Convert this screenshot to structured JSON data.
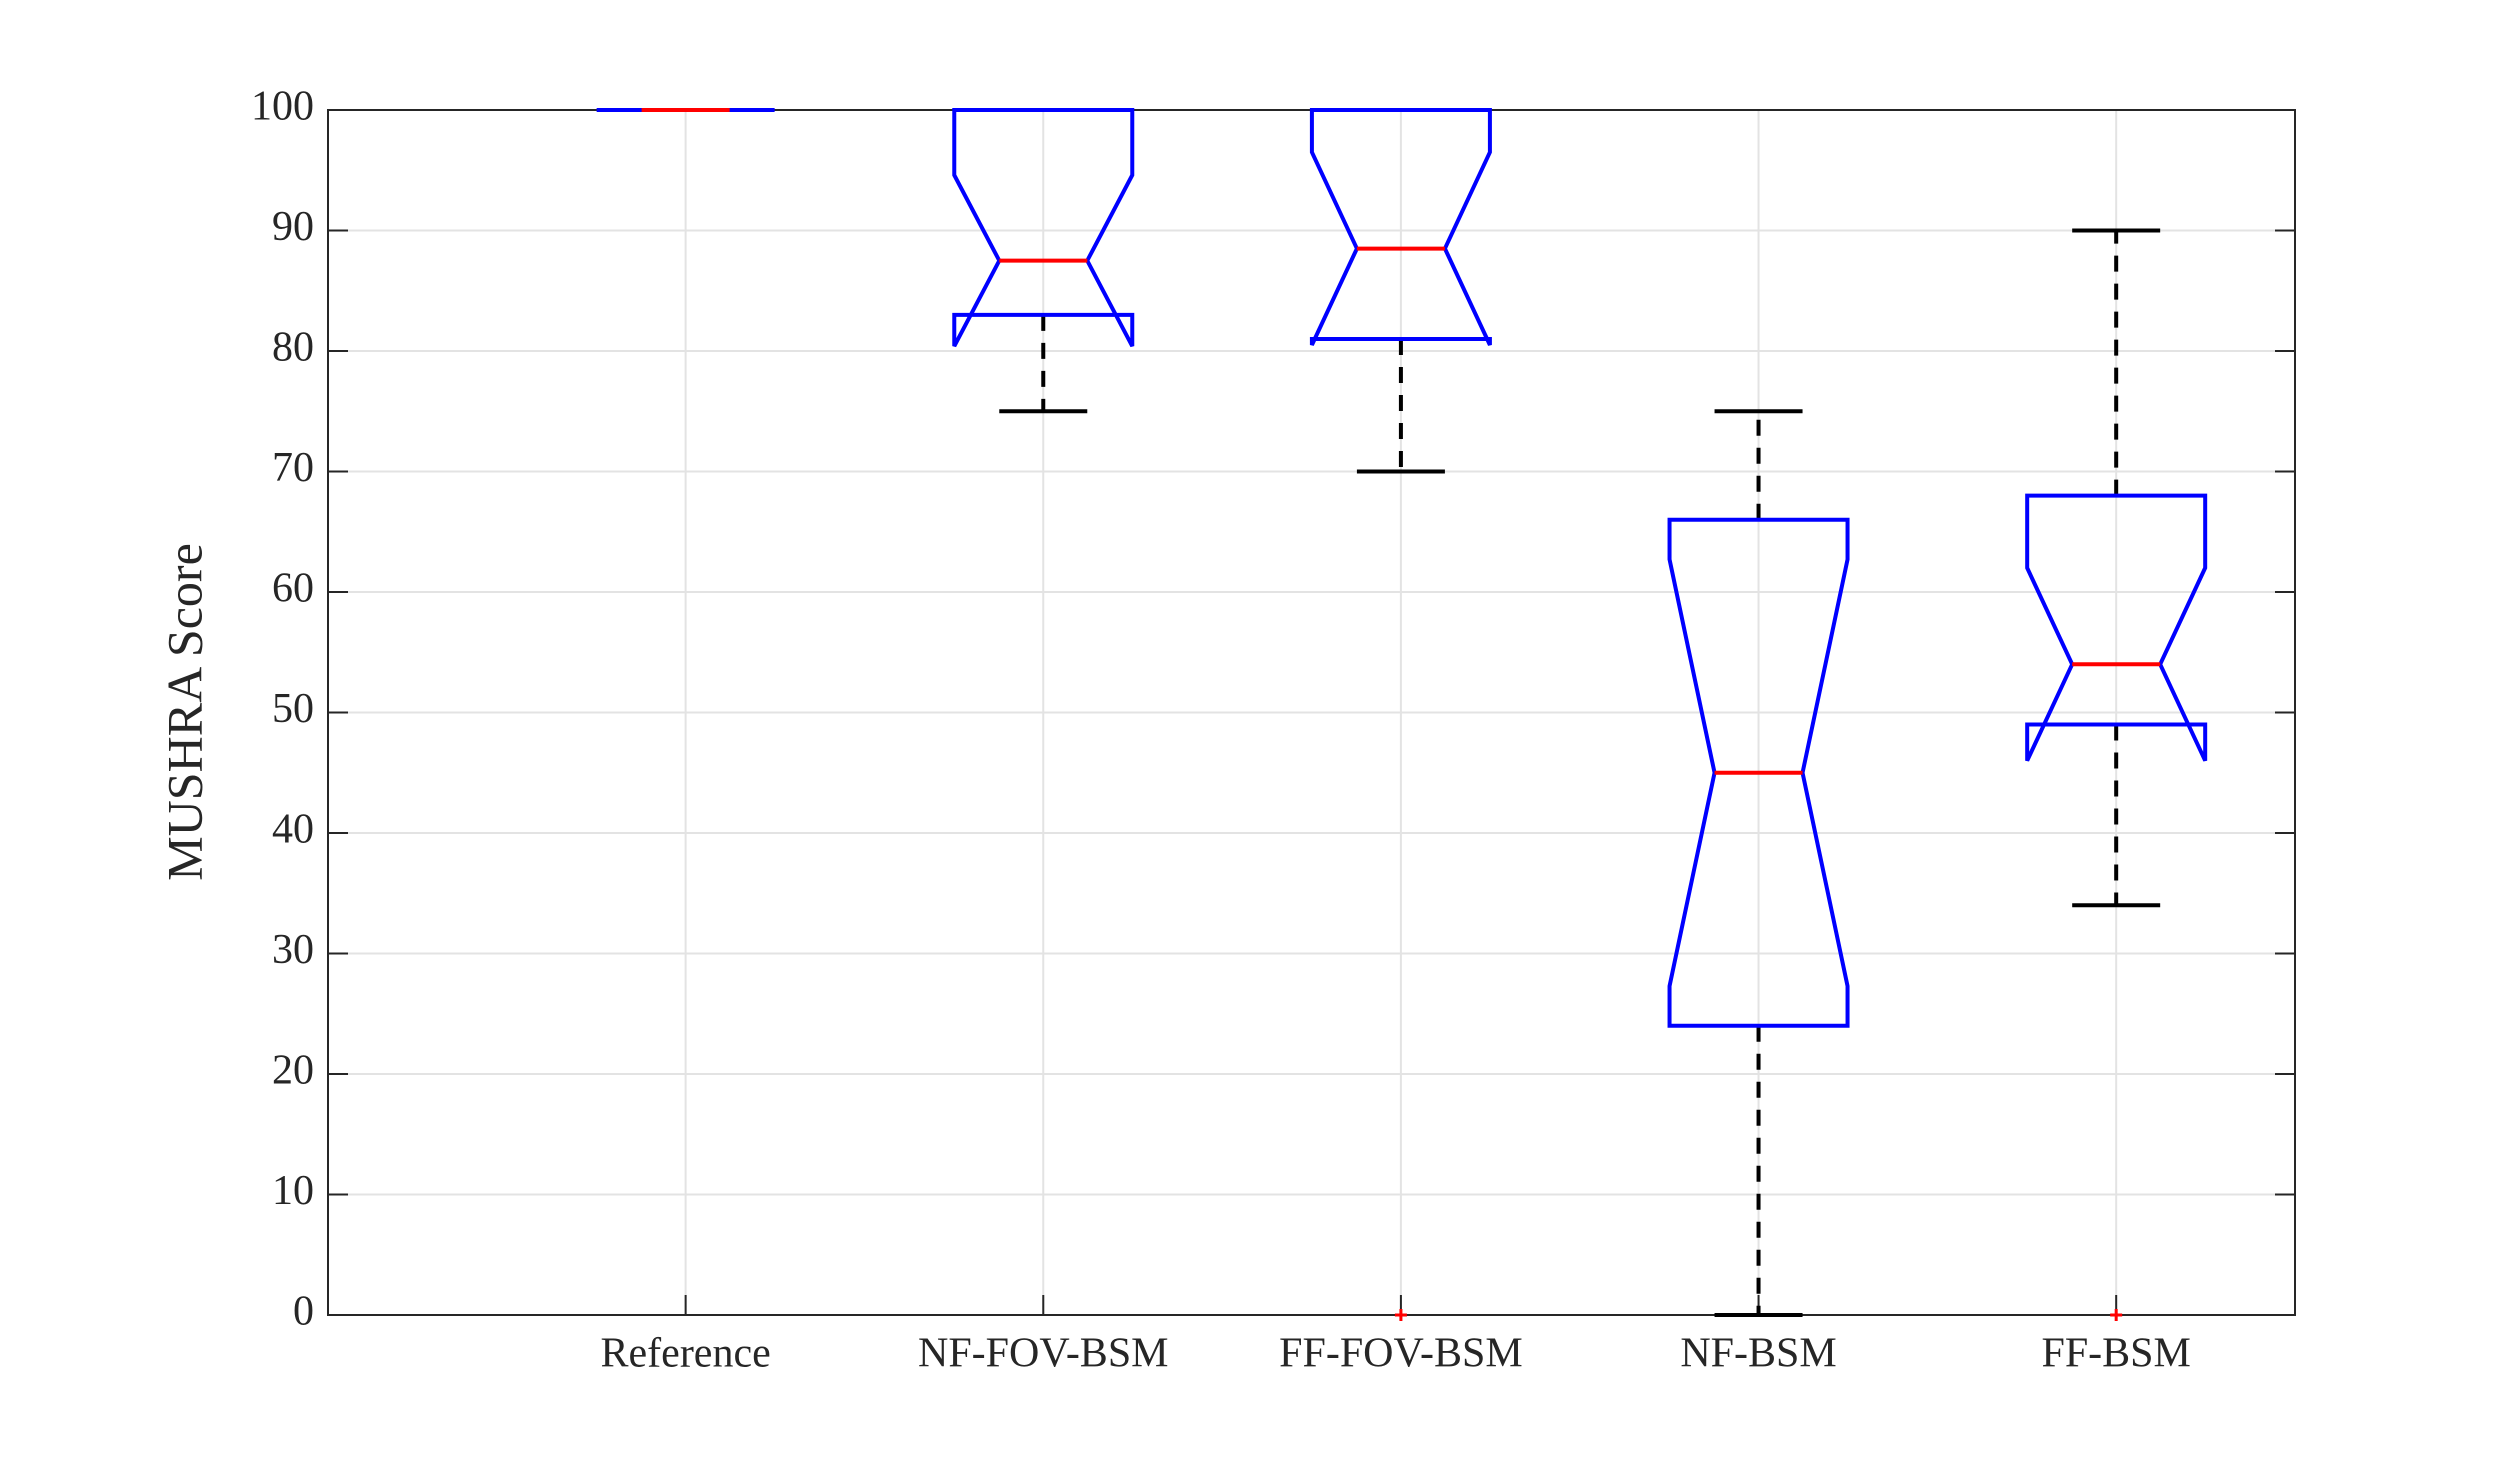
{
  "chart_data": {
    "type": "box",
    "ylabel": "MUSHRA Score",
    "categories": [
      "Reference",
      "NF-FOV-BSM",
      "FF-FOV-BSM",
      "NF-BSM",
      "FF-BSM"
    ],
    "boxes": [
      {
        "min": 100,
        "q1": 100,
        "median": 100,
        "q3": 100,
        "max": 100,
        "notch_low": 100,
        "notch_high": 100,
        "outliers": []
      },
      {
        "min": 75,
        "q1": 83,
        "median": 87.5,
        "q3": 100,
        "max": 100,
        "notch_low": 80.4,
        "notch_high": 94.6,
        "outliers": []
      },
      {
        "min": 70,
        "q1": 81,
        "median": 88.5,
        "q3": 100,
        "max": 100,
        "notch_low": 80.5,
        "notch_high": 96.5,
        "outliers": [
          0
        ]
      },
      {
        "min": 0,
        "q1": 24,
        "median": 45,
        "q3": 66,
        "max": 75,
        "notch_low": 27.3,
        "notch_high": 62.7,
        "outliers": []
      },
      {
        "min": 34,
        "q1": 49,
        "median": 54,
        "q3": 68,
        "max": 90,
        "notch_low": 46,
        "notch_high": 62,
        "outliers": [
          0
        ]
      }
    ],
    "box_color": "#0000ff",
    "median_color": "#ff0000",
    "whisker_color": "#000000",
    "outlier_color": "#ff0000",
    "ylim": [
      0,
      100
    ],
    "yticks": [
      0,
      10,
      20,
      30,
      40,
      50,
      60,
      70,
      80,
      90,
      100
    ],
    "grid": true
  }
}
